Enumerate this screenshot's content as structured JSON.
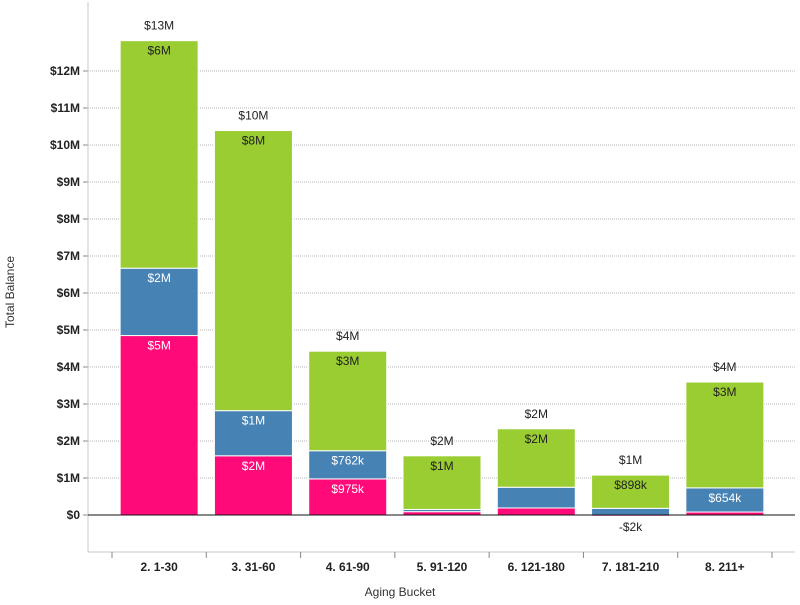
{
  "chart_data": {
    "type": "bar",
    "stacked": true,
    "title": "",
    "xlabel": "Aging Bucket",
    "ylabel": "Total Balance",
    "ylim": [
      -1000000,
      13200000
    ],
    "yticks": [
      0,
      1000000,
      2000000,
      3000000,
      4000000,
      5000000,
      6000000,
      7000000,
      8000000,
      9000000,
      10000000,
      11000000,
      12000000
    ],
    "ytick_labels": [
      "$0",
      "$1M",
      "$2M",
      "$3M",
      "$4M",
      "$5M",
      "$6M",
      "$7M",
      "$8M",
      "$9M",
      "$10M",
      "$11M",
      "$12M"
    ],
    "grid": true,
    "categories": [
      "2. 1-30",
      "3. 31-60",
      "4. 61-90",
      "5. 91-120",
      "6. 121-180",
      "7. 181-210",
      "8. 211+"
    ],
    "series": [
      {
        "color": "#ff0a78",
        "values": [
          4850000,
          1600000,
          975000,
          90000,
          190000,
          -2000,
          80000
        ],
        "labels": [
          "$5M",
          "$2M",
          "$975k",
          "",
          "",
          "-$2k",
          ""
        ]
      },
      {
        "color": "#4682b4",
        "values": [
          1820000,
          1220000,
          762000,
          60000,
          560000,
          180000,
          654000
        ],
        "labels": [
          "$2M",
          "$1M",
          "$762k",
          "",
          "",
          "",
          "$654k"
        ]
      },
      {
        "color": "#9acd32",
        "values": [
          6150000,
          7570000,
          2690000,
          1450000,
          1580000,
          898000,
          2860000
        ],
        "labels": [
          "$6M",
          "$8M",
          "$3M",
          "$1M",
          "$2M",
          "$898k",
          "$3M"
        ]
      }
    ],
    "totals": [
      12820000,
      10390000,
      4427000,
      1600000,
      2330000,
      1076000,
      3594000
    ],
    "total_labels": [
      "$13M",
      "$10M",
      "$4M",
      "$2M",
      "$2M",
      "$1M",
      "$4M"
    ]
  }
}
